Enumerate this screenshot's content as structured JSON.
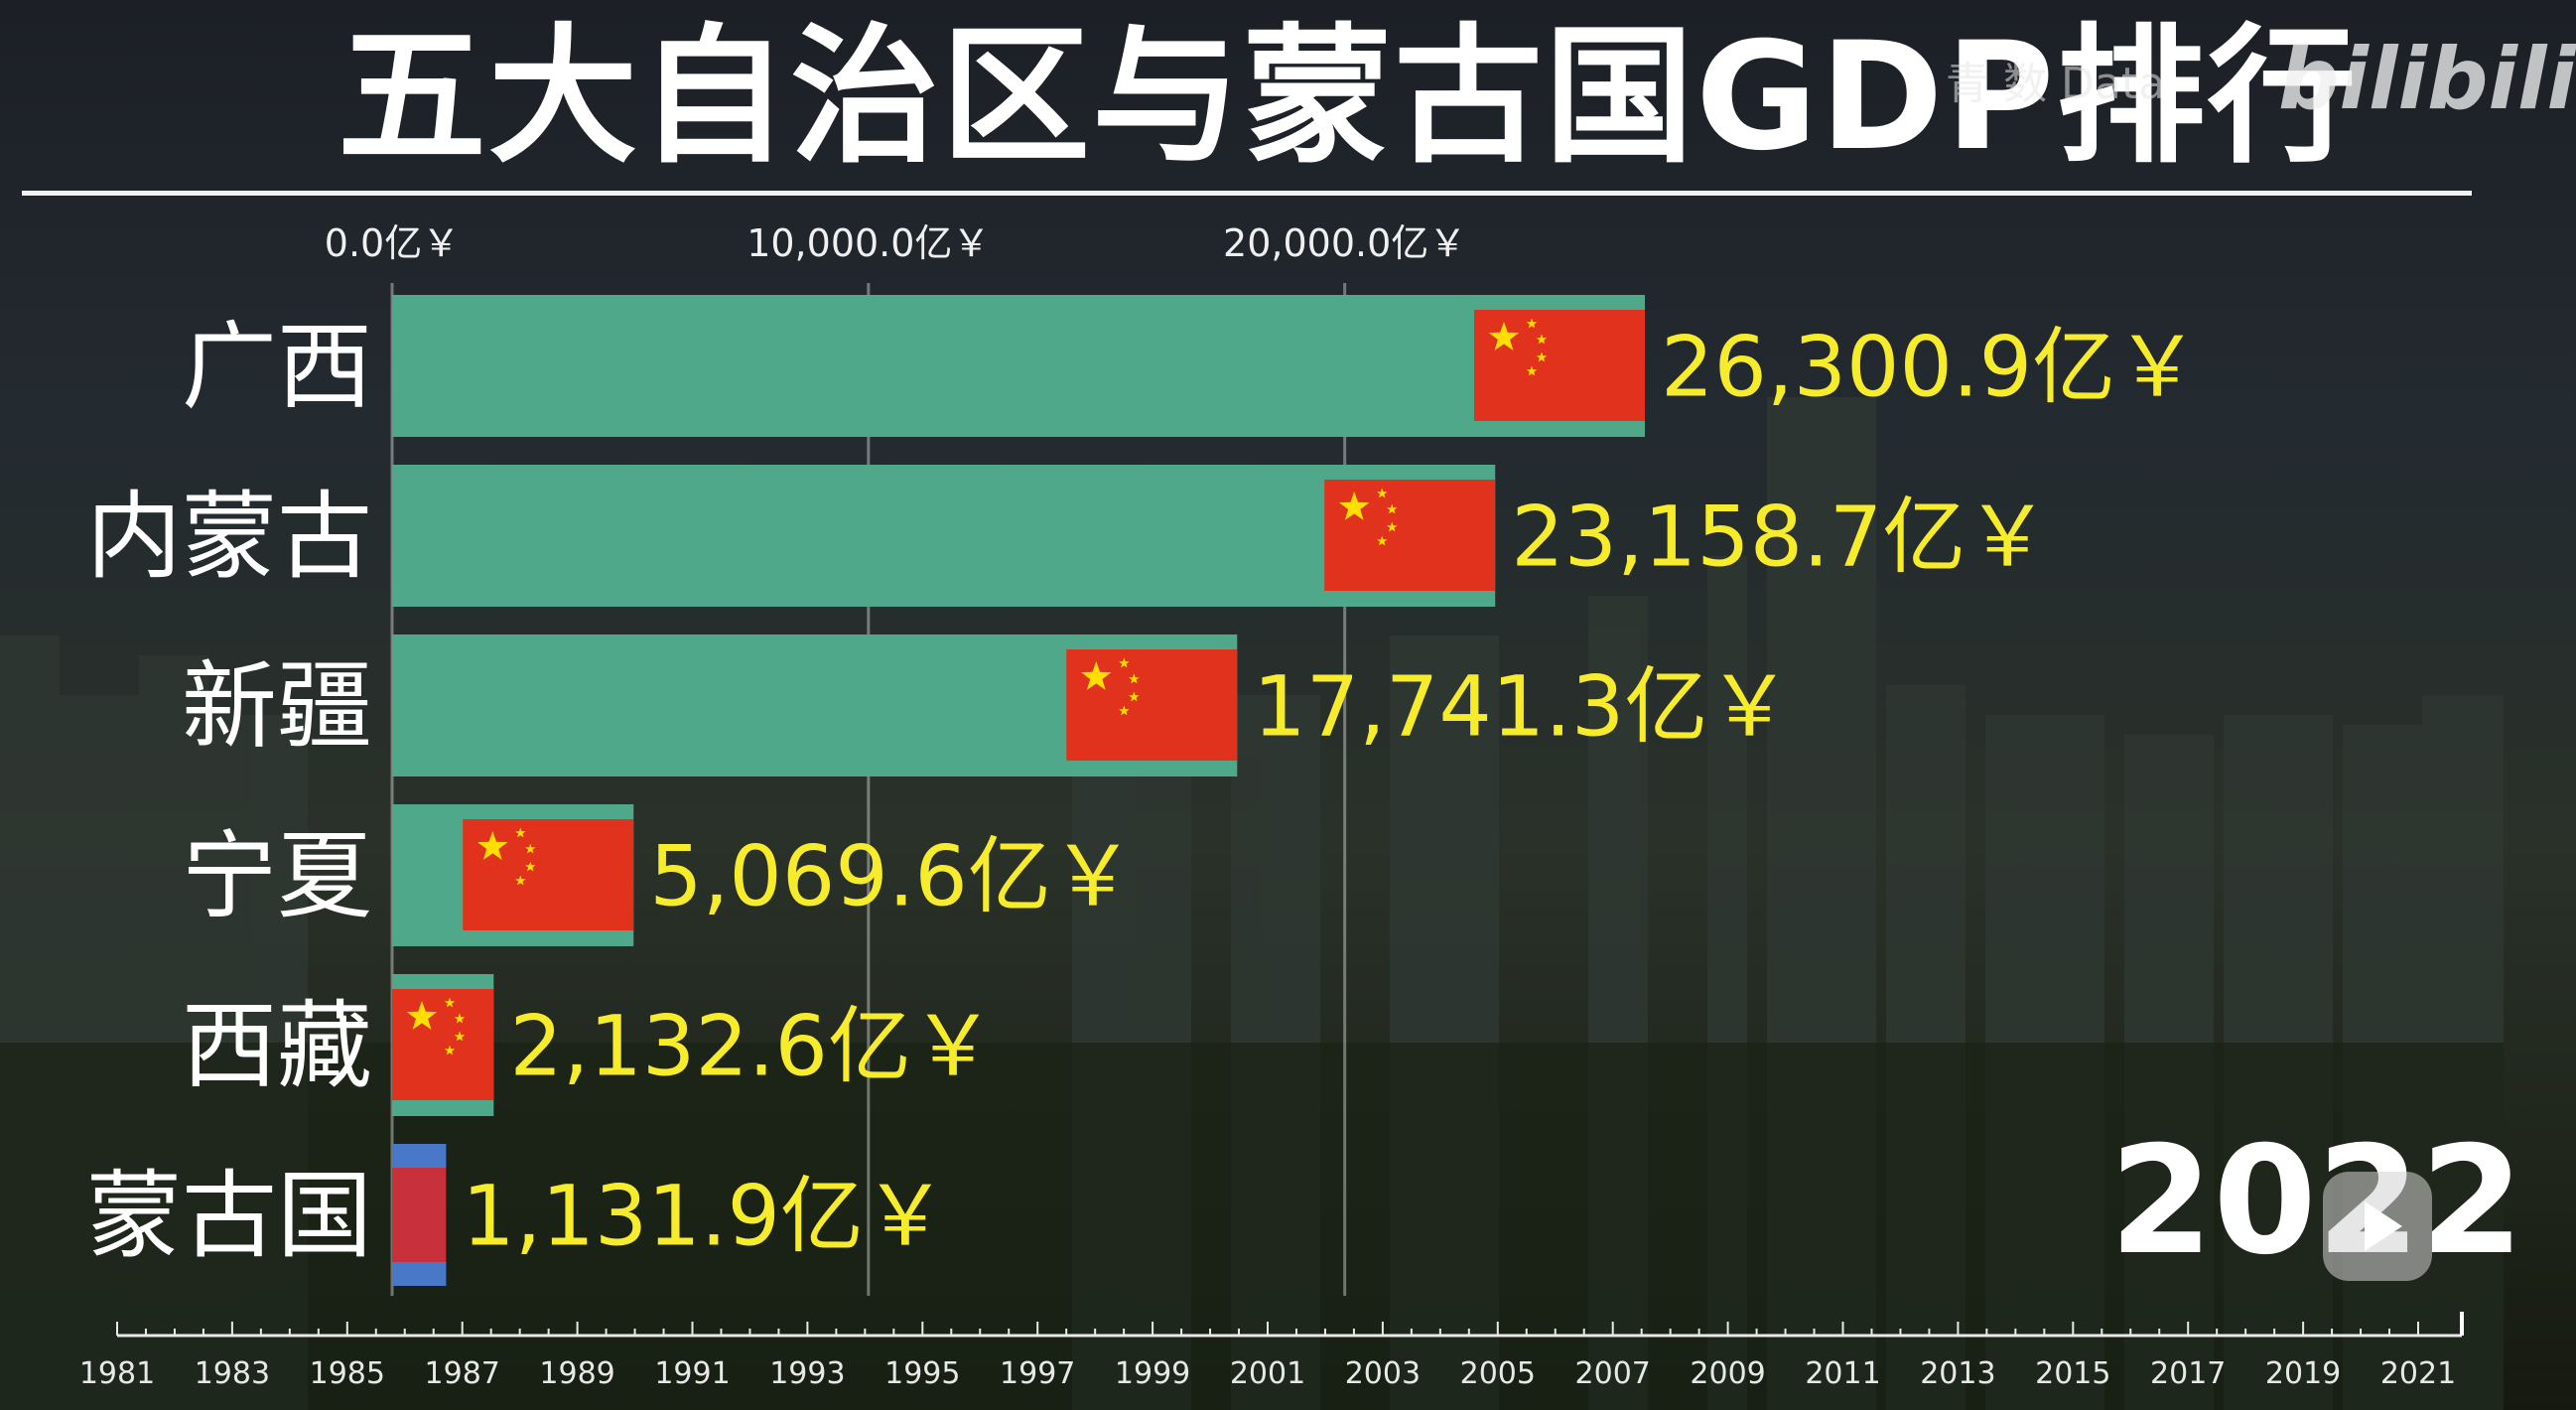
{
  "header": {
    "title": "五大自治区与蒙古国GDP排行",
    "watermark": "青 数 Data",
    "brand": "bilibili"
  },
  "colors": {
    "bar": "#4fa88a",
    "flag_red": "#e0321c",
    "flag_star": "#ffde00",
    "value_text": "#f6ec2c",
    "mongolia_blue": "#4a78c8",
    "mongolia_red": "#c8303c"
  },
  "icons": {
    "china_flag": "china-flag-icon",
    "mongolia_flag": "mongolia-flag-icon",
    "play": "play-icon"
  },
  "year_label": "2022",
  "chart_data": {
    "type": "bar",
    "orientation": "horizontal",
    "title": "五大自治区与蒙古国GDP排行",
    "unit": "亿￥",
    "categories": [
      "广西",
      "内蒙古",
      "新疆",
      "宁夏",
      "西藏",
      "蒙古国"
    ],
    "values": [
      26300.9,
      23158.7,
      17741.3,
      5069.6,
      2132.6,
      1131.9
    ],
    "value_labels": [
      "26,300.9亿￥",
      "23,158.7亿￥",
      "17,741.3亿￥",
      "5,069.6亿￥",
      "2,132.6亿￥",
      "1,131.9亿￥"
    ],
    "flags": [
      "china",
      "china",
      "china",
      "china",
      "china",
      "mongolia"
    ],
    "xlim": [
      0,
      26300.9
    ],
    "top_ticks": [
      {
        "value": 0,
        "label": "0.0亿￥"
      },
      {
        "value": 10000,
        "label": "10,000.0亿￥"
      },
      {
        "value": 20000,
        "label": "20,000.0亿￥"
      }
    ],
    "grid": true,
    "timeline": {
      "labels": [
        "1981",
        "1983",
        "1985",
        "1987",
        "1989",
        "1991",
        "1993",
        "1995",
        "1997",
        "1999",
        "2001",
        "2003",
        "2005",
        "2007",
        "2009",
        "2011",
        "2013",
        "2015",
        "2017",
        "2019",
        "2021"
      ],
      "current": "2022"
    }
  }
}
